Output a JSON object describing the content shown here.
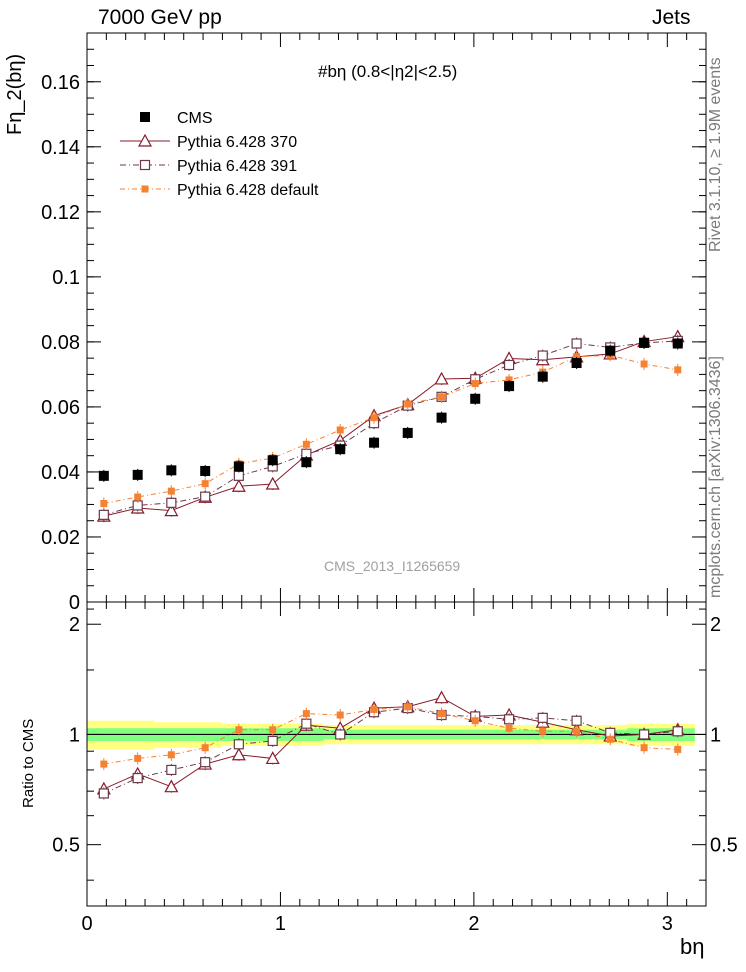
{
  "header": {
    "left": "7000 GeV pp",
    "right": "Jets"
  },
  "side_labels": {
    "rivet": "Rivet 3.1.10, ≥ 1.9M events",
    "mcplots": "mcplots.cern.ch [arXiv:1306.3436]"
  },
  "colors": {
    "cms": "#000000",
    "p370": "#8b1a2b",
    "p391": "#6b3a4a",
    "pdefault": "#f58232",
    "band_inner": "#80ff80",
    "band_outer": "#ffff80"
  },
  "chart_data": [
    {
      "type": "scatter",
      "panel": "main",
      "title": "#bη (0.8<|η2|<2.5)",
      "watermark": "CMS_2013_I1265659",
      "ylabel": "Fη_2(bη)",
      "xlim": [
        0,
        3.2
      ],
      "ylim": [
        0,
        0.175
      ],
      "y_ticks": [
        "0",
        "0.02",
        "0.04",
        "0.06",
        "0.08",
        "0.1",
        "0.12",
        "0.14",
        "0.16"
      ],
      "x": [
        0.087,
        0.262,
        0.436,
        0.611,
        0.785,
        0.96,
        1.134,
        1.309,
        1.484,
        1.658,
        1.833,
        2.007,
        2.182,
        2.356,
        2.531,
        2.705,
        2.88,
        3.054
      ],
      "series": [
        {
          "name": "CMS",
          "key": "cms",
          "values": [
            0.0388,
            0.0391,
            0.0405,
            0.0403,
            0.0417,
            0.0436,
            0.043,
            0.047,
            0.049,
            0.052,
            0.0567,
            0.0625,
            0.0664,
            0.0693,
            0.0735,
            0.0773,
            0.0797,
            0.0795
          ]
        },
        {
          "name": "Pythia 6.428 370",
          "key": "p370",
          "values": [
            0.0264,
            0.0289,
            0.0281,
            0.0322,
            0.0356,
            0.0363,
            0.0452,
            0.0497,
            0.0573,
            0.0607,
            0.0686,
            0.0688,
            0.0749,
            0.0745,
            0.0754,
            0.0763,
            0.0801,
            0.0816
          ]
        },
        {
          "name": "Pythia 6.428 391",
          "key": "p391",
          "values": [
            0.0268,
            0.0297,
            0.0305,
            0.0324,
            0.0388,
            0.0417,
            0.0456,
            0.0481,
            0.055,
            0.0604,
            0.0631,
            0.0685,
            0.0729,
            0.0758,
            0.0795,
            0.0783,
            0.0797,
            0.0803
          ]
        },
        {
          "name": "Pythia 6.428 default",
          "key": "pdefault",
          "values": [
            0.0303,
            0.0323,
            0.0341,
            0.0364,
            0.0425,
            0.0443,
            0.0485,
            0.0529,
            0.0567,
            0.0609,
            0.0631,
            0.0672,
            0.0683,
            0.0707,
            0.0754,
            0.0759,
            0.0732,
            0.0714
          ]
        }
      ]
    },
    {
      "type": "line",
      "panel": "ratio",
      "ylabel": "Ratio to CMS",
      "xlabel": "bη",
      "xlim": [
        0,
        3.2
      ],
      "ylim": [
        0.34,
        2.3
      ],
      "y_ticks": [
        "0.5",
        "1",
        "2"
      ],
      "x_ticks": [
        "0",
        "1",
        "2",
        "3"
      ],
      "x": [
        0.087,
        0.262,
        0.436,
        0.611,
        0.785,
        0.96,
        1.134,
        1.309,
        1.484,
        1.658,
        1.833,
        2.007,
        2.182,
        2.356,
        2.531,
        2.705,
        2.88,
        3.054
      ],
      "series": [
        {
          "name": "Pythia 6.428 370",
          "key": "p370",
          "values": [
            0.71,
            0.78,
            0.72,
            0.83,
            0.88,
            0.86,
            1.06,
            1.04,
            1.18,
            1.19,
            1.26,
            1.12,
            1.13,
            1.08,
            1.03,
            0.99,
            1.0,
            1.03
          ]
        },
        {
          "name": "Pythia 6.428 391",
          "key": "p391",
          "values": [
            0.69,
            0.76,
            0.8,
            0.84,
            0.94,
            0.96,
            1.07,
            1.0,
            1.15,
            1.18,
            1.13,
            1.12,
            1.1,
            1.11,
            1.09,
            1.01,
            1.0,
            1.02
          ]
        },
        {
          "name": "Pythia 6.428 default",
          "key": "pdefault",
          "values": [
            0.83,
            0.86,
            0.88,
            0.92,
            1.03,
            1.03,
            1.14,
            1.13,
            1.17,
            1.19,
            1.14,
            1.09,
            1.04,
            1.02,
            1.02,
            0.97,
            0.92,
            0.91
          ]
        }
      ]
    }
  ]
}
